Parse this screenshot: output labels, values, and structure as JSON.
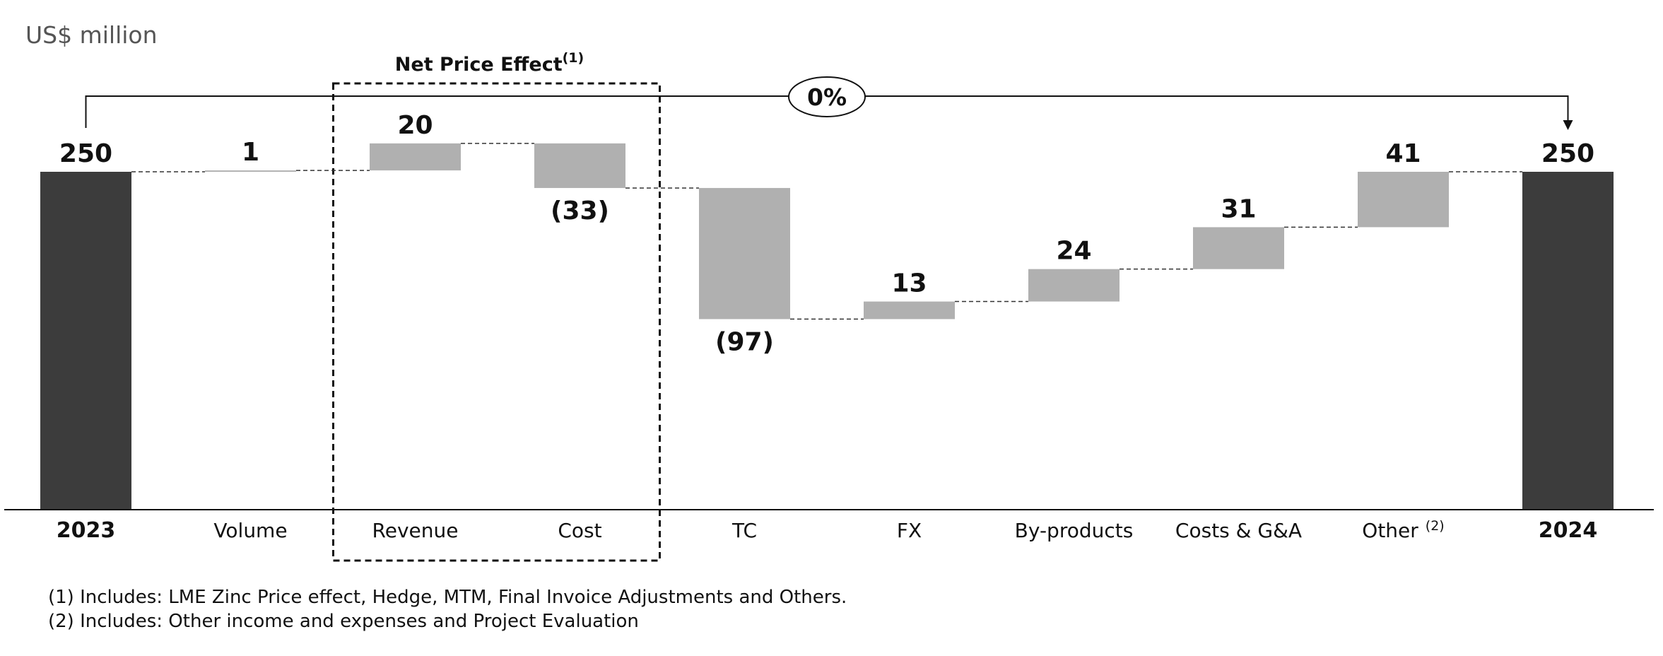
{
  "chart_data": {
    "type": "waterfall",
    "unit_label": "US$ million",
    "categories": [
      "2023",
      "Volume",
      "Revenue",
      "Cost",
      "TC",
      "FX",
      "By-products",
      "Costs & G&A",
      "Other",
      "2024"
    ],
    "category_superscripts": {
      "Other": "(2)"
    },
    "values": [
      250,
      1,
      20,
      -33,
      -97,
      13,
      24,
      31,
      41,
      250
    ],
    "value_labels": [
      "250",
      "1",
      "20",
      "(33)",
      "(97)",
      "13",
      "24",
      "31",
      "41",
      "250"
    ],
    "totals": [
      "2023",
      "2024"
    ],
    "group_box": {
      "label": "Net Price Effect",
      "superscript": "(1)",
      "categories": [
        "Revenue",
        "Cost"
      ]
    },
    "change_label": "0%",
    "footnotes": [
      "(1) Includes: LME Zinc Price effect, Hedge, MTM, Final Invoice Adjustments and Others.",
      "(2) Includes: Other income and expenses and Project Evaluation"
    ],
    "colors": {
      "total": "#3c3c3c",
      "delta": "#b0b0b0",
      "text": "#111111"
    },
    "ylim": [
      0,
      250
    ]
  }
}
